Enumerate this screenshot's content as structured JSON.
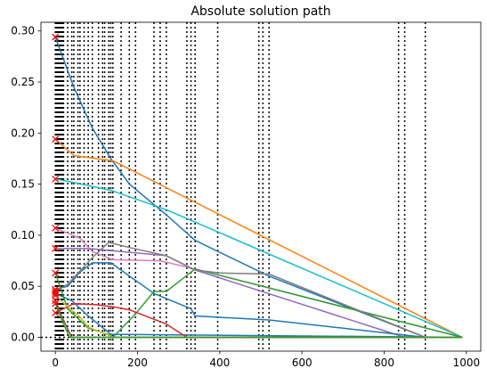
{
  "chart_data": {
    "type": "line",
    "title": "Absolute solution path",
    "xlabel": "",
    "ylabel": "",
    "xlim": [
      -35,
      1035
    ],
    "ylim": [
      -0.0135,
      0.3085
    ],
    "xticks": [
      0,
      200,
      400,
      600,
      800,
      1000
    ],
    "xtick_labels": [
      "0",
      "200",
      "400",
      "600",
      "800",
      "1000"
    ],
    "yticks": [
      0.0,
      0.05,
      0.1,
      0.15,
      0.2,
      0.25,
      0.3
    ],
    "ytick_labels": [
      "0.00",
      "0.05",
      "0.10",
      "0.15",
      "0.20",
      "0.25",
      "0.30"
    ],
    "grid": false,
    "baseline": {
      "x": [
        -35,
        990
      ],
      "y": 0,
      "style": "dotted"
    },
    "knots": [
      0,
      2,
      4,
      6,
      8,
      10,
      12,
      14,
      16,
      18,
      20,
      30,
      40,
      45,
      55,
      60,
      70,
      80,
      90,
      105,
      115,
      120,
      130,
      135,
      140,
      160,
      180,
      195,
      240,
      255,
      270,
      320,
      330,
      340,
      395,
      495,
      505,
      520,
      835,
      850,
      900
    ],
    "start_markers": [
      0.294,
      0.194,
      0.155,
      0.107,
      0.087,
      0.063,
      0.047,
      0.045,
      0.043,
      0.041,
      0.036,
      0.033,
      0.024
    ],
    "series": [
      {
        "color": "#1f77b4",
        "x": [
          0,
          45,
          90,
          135,
          180,
          270,
          340,
          520,
          900,
          990
        ],
        "y": [
          0.294,
          0.245,
          0.205,
          0.175,
          0.15,
          0.12,
          0.095,
          0.06,
          0.0,
          0.0
        ]
      },
      {
        "color": "#ff7f0e",
        "x": [
          0,
          45,
          100,
          140,
          990
        ],
        "y": [
          0.194,
          0.178,
          0.175,
          0.173,
          0.0
        ]
      },
      {
        "color": "#17becf",
        "x": [
          0,
          40,
          135,
          270,
          990
        ],
        "y": [
          0.155,
          0.152,
          0.144,
          0.125,
          0.0
        ]
      },
      {
        "color": "#e377c2",
        "x": [
          0,
          60,
          90,
          140,
          255,
          340,
          990
        ],
        "y": [
          0.107,
          0.097,
          0.084,
          0.076,
          0.075,
          0.067,
          0.0
        ]
      },
      {
        "color": "#9467bd",
        "x": [
          0,
          80,
          270,
          340,
          850,
          990
        ],
        "y": [
          0.087,
          0.087,
          0.08,
          0.066,
          0.0,
          0.0
        ]
      },
      {
        "color": "#2ca02c",
        "x": [
          0,
          30,
          80,
          135,
          140,
          195,
          240,
          270,
          340,
          990
        ],
        "y": [
          0.063,
          0.028,
          0.009,
          0.002,
          0.0,
          0.023,
          0.045,
          0.045,
          0.067,
          0.0
        ]
      },
      {
        "color": "#1f77b4",
        "x": [
          0,
          30,
          60,
          90,
          135,
          240,
          330,
          340,
          520,
          900,
          990
        ],
        "y": [
          0.047,
          0.05,
          0.064,
          0.073,
          0.073,
          0.043,
          0.028,
          0.021,
          0.017,
          0.0,
          0.0
        ]
      },
      {
        "color": "#7f7f7f",
        "x": [
          0,
          30,
          90,
          130,
          180,
          270,
          340,
          400,
          520,
          900,
          990
        ],
        "y": [
          0.045,
          0.052,
          0.078,
          0.093,
          0.088,
          0.08,
          0.066,
          0.063,
          0.062,
          0.0,
          0.0
        ]
      },
      {
        "color": "#1f77b4",
        "x": [
          0,
          40,
          80,
          135,
          990
        ],
        "y": [
          0.043,
          0.036,
          0.021,
          0.003,
          0.0
        ]
      },
      {
        "color": "#d62728",
        "x": [
          0,
          45,
          100,
          140,
          180,
          270,
          320,
          990
        ],
        "y": [
          0.024,
          0.033,
          0.032,
          0.03,
          0.027,
          0.013,
          0.0,
          0.0
        ]
      },
      {
        "color": "#bcbd22",
        "x": [
          0,
          30,
          60,
          80,
          130,
          140,
          990
        ],
        "y": [
          0.041,
          0.03,
          0.02,
          0.01,
          0.002,
          0.0,
          0.0
        ]
      },
      {
        "color": "#8c564b",
        "x": [
          0,
          15,
          40,
          990
        ],
        "y": [
          0.036,
          0.021,
          0.0,
          0.0
        ]
      },
      {
        "color": "#2ca02c",
        "x": [
          0,
          20,
          35,
          990
        ],
        "y": [
          0.033,
          0.013,
          0.0,
          0.0
        ]
      }
    ],
    "colors": {
      "marker": "#ff0000",
      "knot_lines": "#000000"
    }
  }
}
